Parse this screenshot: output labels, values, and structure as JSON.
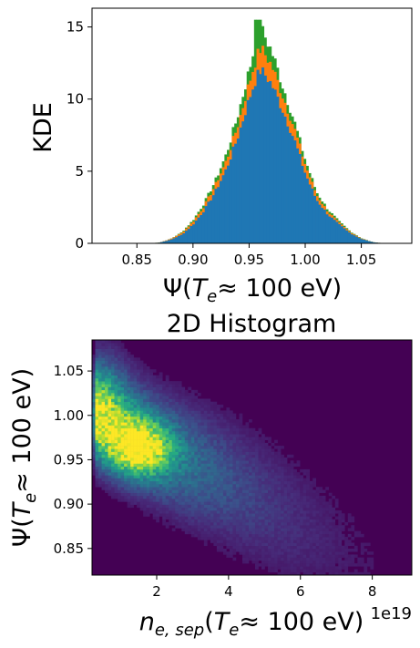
{
  "colors": {
    "blue": "#1f77b4",
    "orange": "#ff7f0e",
    "green": "#2ca02c",
    "viridis_low": "#440154",
    "viridis_high": "#fde725"
  },
  "chart_data": [
    {
      "type": "histogram",
      "title": "",
      "xlabel": "Ψ(T_e ≈ 100 eV)",
      "ylabel": "KDE",
      "xlim": [
        0.81,
        1.095
      ],
      "ylim": [
        0,
        16.3
      ],
      "xticks": [
        "0.85",
        "0.90",
        "0.95",
        "1.00",
        "1.05"
      ],
      "xtick_values": [
        0.85,
        0.9,
        0.95,
        1.0,
        1.05
      ],
      "yticks": [
        "0",
        "5",
        "10",
        "15"
      ],
      "ytick_values": [
        0,
        5,
        10,
        15
      ],
      "stacked": true,
      "legend": "none",
      "series": [
        {
          "color": "#1f77b4",
          "peak_x": 0.96,
          "peak_value": 12.0,
          "x": [
            0.86,
            0.87,
            0.88,
            0.89,
            0.9,
            0.91,
            0.92,
            0.93,
            0.94,
            0.95,
            0.955,
            0.96,
            0.965,
            0.97,
            0.98,
            0.99,
            1.0,
            1.01,
            1.02,
            1.03,
            1.04,
            1.05,
            1.06,
            1.07
          ],
          "values": [
            0.0,
            0.05,
            0.25,
            0.6,
            1.3,
            2.3,
            3.6,
            5.2,
            7.4,
            10.0,
            11.2,
            12.0,
            11.6,
            11.0,
            9.2,
            7.2,
            4.8,
            3.0,
            2.0,
            1.3,
            0.7,
            0.3,
            0.08,
            0.0
          ]
        },
        {
          "color": "#ff7f0e",
          "x": [
            0.86,
            0.87,
            0.88,
            0.89,
            0.9,
            0.91,
            0.92,
            0.93,
            0.94,
            0.95,
            0.955,
            0.96,
            0.965,
            0.97,
            0.98,
            0.99,
            1.0,
            1.01,
            1.02,
            1.03,
            1.04,
            1.05,
            1.06,
            1.07
          ],
          "values": [
            0.0,
            0.0,
            0.05,
            0.12,
            0.2,
            0.3,
            0.45,
            0.6,
            0.8,
            1.1,
            1.3,
            1.5,
            1.4,
            1.3,
            1.0,
            0.8,
            0.6,
            0.35,
            0.2,
            0.12,
            0.08,
            0.03,
            0.0,
            0.0
          ]
        },
        {
          "color": "#2ca02c",
          "x": [
            0.86,
            0.87,
            0.88,
            0.89,
            0.9,
            0.91,
            0.92,
            0.93,
            0.94,
            0.95,
            0.955,
            0.96,
            0.965,
            0.97,
            0.98,
            0.99,
            1.0,
            1.01,
            1.02,
            1.03,
            1.04,
            1.05,
            1.06,
            1.07
          ],
          "values": [
            0.0,
            0.0,
            0.0,
            0.05,
            0.1,
            0.2,
            0.3,
            0.45,
            0.7,
            0.9,
            1.2,
            1.4,
            1.2,
            1.0,
            0.7,
            0.5,
            0.35,
            0.2,
            0.15,
            0.1,
            0.05,
            0.02,
            0.0,
            0.0
          ]
        }
      ]
    },
    {
      "type": "heatmap",
      "title": "2D Histogram",
      "xlabel": "n_e,sep(T_e ≈ 100 eV)",
      "ylabel": "Ψ(T_e ≈ 100 eV)",
      "x_offset_label": "1e19",
      "xlim": [
        0.2,
        9.1
      ],
      "ylim": [
        0.82,
        1.085
      ],
      "xticks": [
        "2",
        "4",
        "6",
        "8"
      ],
      "xtick_values": [
        2,
        4,
        6,
        8
      ],
      "yticks": [
        "0.85",
        "0.90",
        "0.95",
        "1.00",
        "1.05"
      ],
      "ytick_values": [
        0.85,
        0.9,
        0.95,
        1.0,
        1.05
      ],
      "colormap": "viridis",
      "peak": {
        "x": 1.5,
        "y": 0.963
      }
    }
  ],
  "labels": {
    "top_ylabel": "KDE",
    "top_xlabel_prefix": "Ψ(",
    "top_xlabel_T": "T",
    "top_xlabel_sub": "e",
    "top_xlabel_suffix": "≈  100 eV)",
    "bottom_title": "2D Histogram",
    "bottom_xlabel_n": "n",
    "bottom_xlabel_sub": "e, sep",
    "bottom_xlabel_mid": "(",
    "bottom_xlabel_T": "T",
    "bottom_xlabel_sub2": "e",
    "bottom_xlabel_suffix": "≈  100 eV)",
    "bottom_ylabel_prefix": "Ψ(",
    "bottom_ylabel_T": "T",
    "bottom_ylabel_sub": "e",
    "bottom_ylabel_suffix": "≈  100 eV)",
    "offset": "1e19"
  }
}
